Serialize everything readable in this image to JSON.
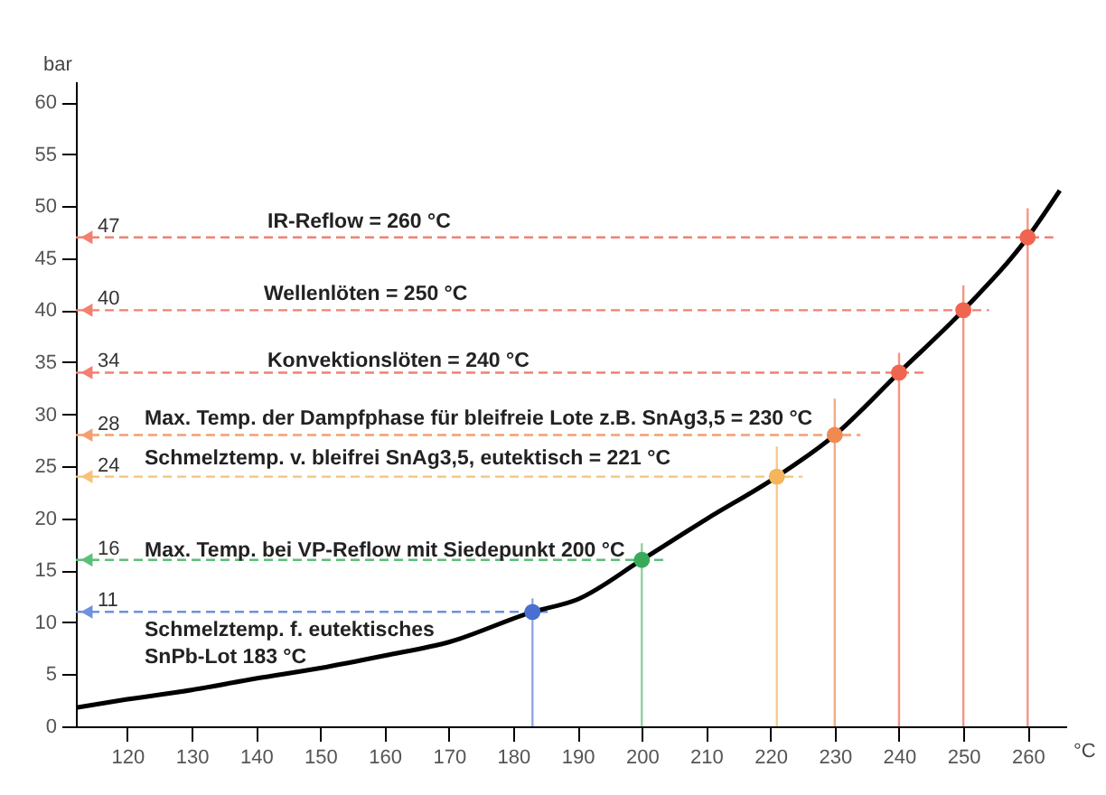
{
  "chart_data": {
    "type": "line",
    "xlabel": "°C",
    "ylabel": "bar",
    "xlim": [
      112,
      266
    ],
    "xticks": [
      120,
      130,
      140,
      150,
      160,
      170,
      180,
      190,
      200,
      210,
      220,
      230,
      240,
      250,
      260
    ],
    "ylim": [
      0,
      62
    ],
    "yticks": [
      0,
      5,
      10,
      15,
      20,
      25,
      30,
      35,
      40,
      45,
      50,
      55,
      60
    ],
    "grid": false,
    "legend": false,
    "series": [
      {
        "type": "line",
        "color": "#6f8fe0",
        "line_style": "dashed",
        "x": [
          112,
          186
        ],
        "values": [
          11,
          11
        ]
      },
      {
        "type": "line",
        "color": "#5cbf78",
        "line_style": "dashed",
        "x": [
          112,
          204
        ],
        "values": [
          16,
          16
        ]
      },
      {
        "type": "line",
        "color": "#f7c27a",
        "line_style": "dashed",
        "x": [
          112,
          225
        ],
        "values": [
          24,
          24
        ]
      },
      {
        "type": "line",
        "color": "#f3a070",
        "line_style": "dashed",
        "x": [
          112,
          234
        ],
        "values": [
          28,
          28
        ]
      },
      {
        "type": "line",
        "color": "#f38070",
        "line_style": "dashed",
        "x": [
          112,
          244
        ],
        "values": [
          34,
          34
        ]
      },
      {
        "type": "line",
        "color": "#f38070",
        "line_style": "dashed",
        "x": [
          112,
          254
        ],
        "values": [
          40,
          40
        ]
      },
      {
        "type": "line",
        "color": "#f38070",
        "line_style": "dashed",
        "x": [
          112,
          264
        ],
        "values": [
          47,
          47
        ]
      },
      {
        "type": "line",
        "color": "#8fa6e6",
        "x": [
          183,
          183
        ],
        "values": [
          0,
          12.3
        ]
      },
      {
        "type": "line",
        "color": "#8fcf9f",
        "x": [
          200,
          200
        ],
        "values": [
          0,
          17.6
        ]
      },
      {
        "type": "line",
        "color": "#f7c98a",
        "x": [
          221,
          221
        ],
        "values": [
          0,
          26.9
        ]
      },
      {
        "type": "line",
        "color": "#f5ab85",
        "x": [
          230,
          230
        ],
        "values": [
          0,
          31.5
        ]
      },
      {
        "type": "line",
        "color": "#f59585",
        "x": [
          240,
          240
        ],
        "values": [
          0,
          35.9
        ]
      },
      {
        "type": "line",
        "color": "#f59585",
        "x": [
          250,
          250
        ],
        "values": [
          0,
          42.4
        ]
      },
      {
        "type": "line",
        "color": "#f59585",
        "x": [
          260,
          260
        ],
        "values": [
          0,
          49.8
        ]
      },
      {
        "type": "line",
        "color": "#000000",
        "x": [
          112,
          120,
          130,
          140,
          150,
          160,
          170,
          183,
          190,
          200,
          210,
          221,
          230,
          240,
          250,
          260,
          265
        ],
        "values": [
          1.8,
          2.6,
          3.5,
          4.6,
          5.6,
          6.8,
          8.1,
          11,
          12.2,
          16,
          19.9,
          24,
          28,
          34,
          40,
          47,
          51.5
        ]
      },
      {
        "type": "scatter",
        "marker": "circle",
        "x": [
          183,
          200,
          221,
          230,
          240,
          250,
          260
        ],
        "values": [
          11,
          16,
          24,
          28,
          34,
          40,
          47
        ],
        "colors": [
          "#4a6fd0",
          "#3aaa5a",
          "#f5b55a",
          "#f08a50",
          "#f06550",
          "#f06550",
          "#f06550"
        ]
      }
    ],
    "annotations": [
      {
        "text": "11",
        "y": 11
      },
      {
        "text": "16",
        "y": 16
      },
      {
        "text": "24",
        "y": 24
      },
      {
        "text": "28",
        "y": 28
      },
      {
        "text": "34",
        "y": 34
      },
      {
        "text": "40",
        "y": 40
      },
      {
        "text": "47",
        "y": 47
      },
      "Schmelztemp. f. eutektisches\nSnPb-Lot 183 °C",
      "Max. Temp. bei VP-Reflow mit Siedepunkt  200 °C",
      "Schmelztemp. v. bleifrei SnAg3,5, eutektisch = 221 °C",
      "Max. Temp. der Dampfphase für bleifreie Lote z.B. SnAg3,5 = 230 °C",
      "Konvektionslöten = 240 °C",
      "Wellenlöten = 250 °C",
      "IR-Reflow = 260 °C"
    ]
  }
}
